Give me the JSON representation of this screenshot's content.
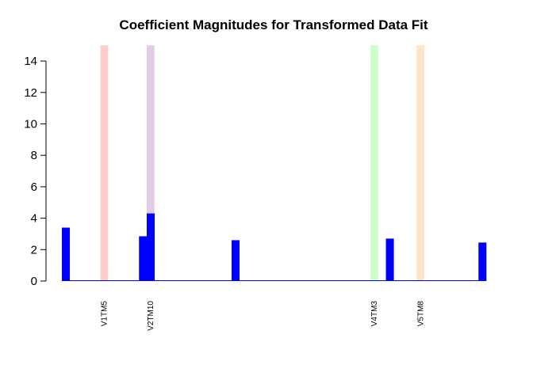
{
  "chart_data": {
    "type": "bar",
    "title": "Coefficient Magnitudes for Transformed Data Fit",
    "xlabel": "",
    "ylabel": "",
    "ylim": [
      0,
      15
    ],
    "yticks": [
      "0",
      "2",
      "4",
      "6",
      "8",
      "10",
      "12",
      "14"
    ],
    "grid": false,
    "bar_color": "#0000ff",
    "n_coefficients": 55,
    "values": [
      3.4,
      0,
      0,
      0,
      0,
      0,
      0,
      0,
      0,
      0,
      2.85,
      4.3,
      0,
      0,
      0,
      0,
      0,
      0,
      0,
      0,
      0,
      0,
      2.6,
      0,
      0,
      0,
      0,
      0,
      0,
      0,
      0,
      0,
      0,
      0,
      0,
      0,
      0,
      0,
      0,
      0,
      0,
      0,
      2.7,
      0,
      0,
      0,
      0,
      0,
      0,
      0,
      0,
      0,
      0,
      0,
      2.45
    ],
    "highlights": [
      {
        "label": "V1TM5",
        "index": 5,
        "color": "#ffcccc",
        "height": 15
      },
      {
        "label": "V2TM10",
        "index": 11,
        "color": "#e2cbe6",
        "height": 15
      },
      {
        "label": "V4TM3",
        "index": 40,
        "color": "#ccffcc",
        "height": 15
      },
      {
        "label": "V5TM8",
        "index": 46,
        "color": "#fde3c7",
        "height": 15
      }
    ]
  }
}
